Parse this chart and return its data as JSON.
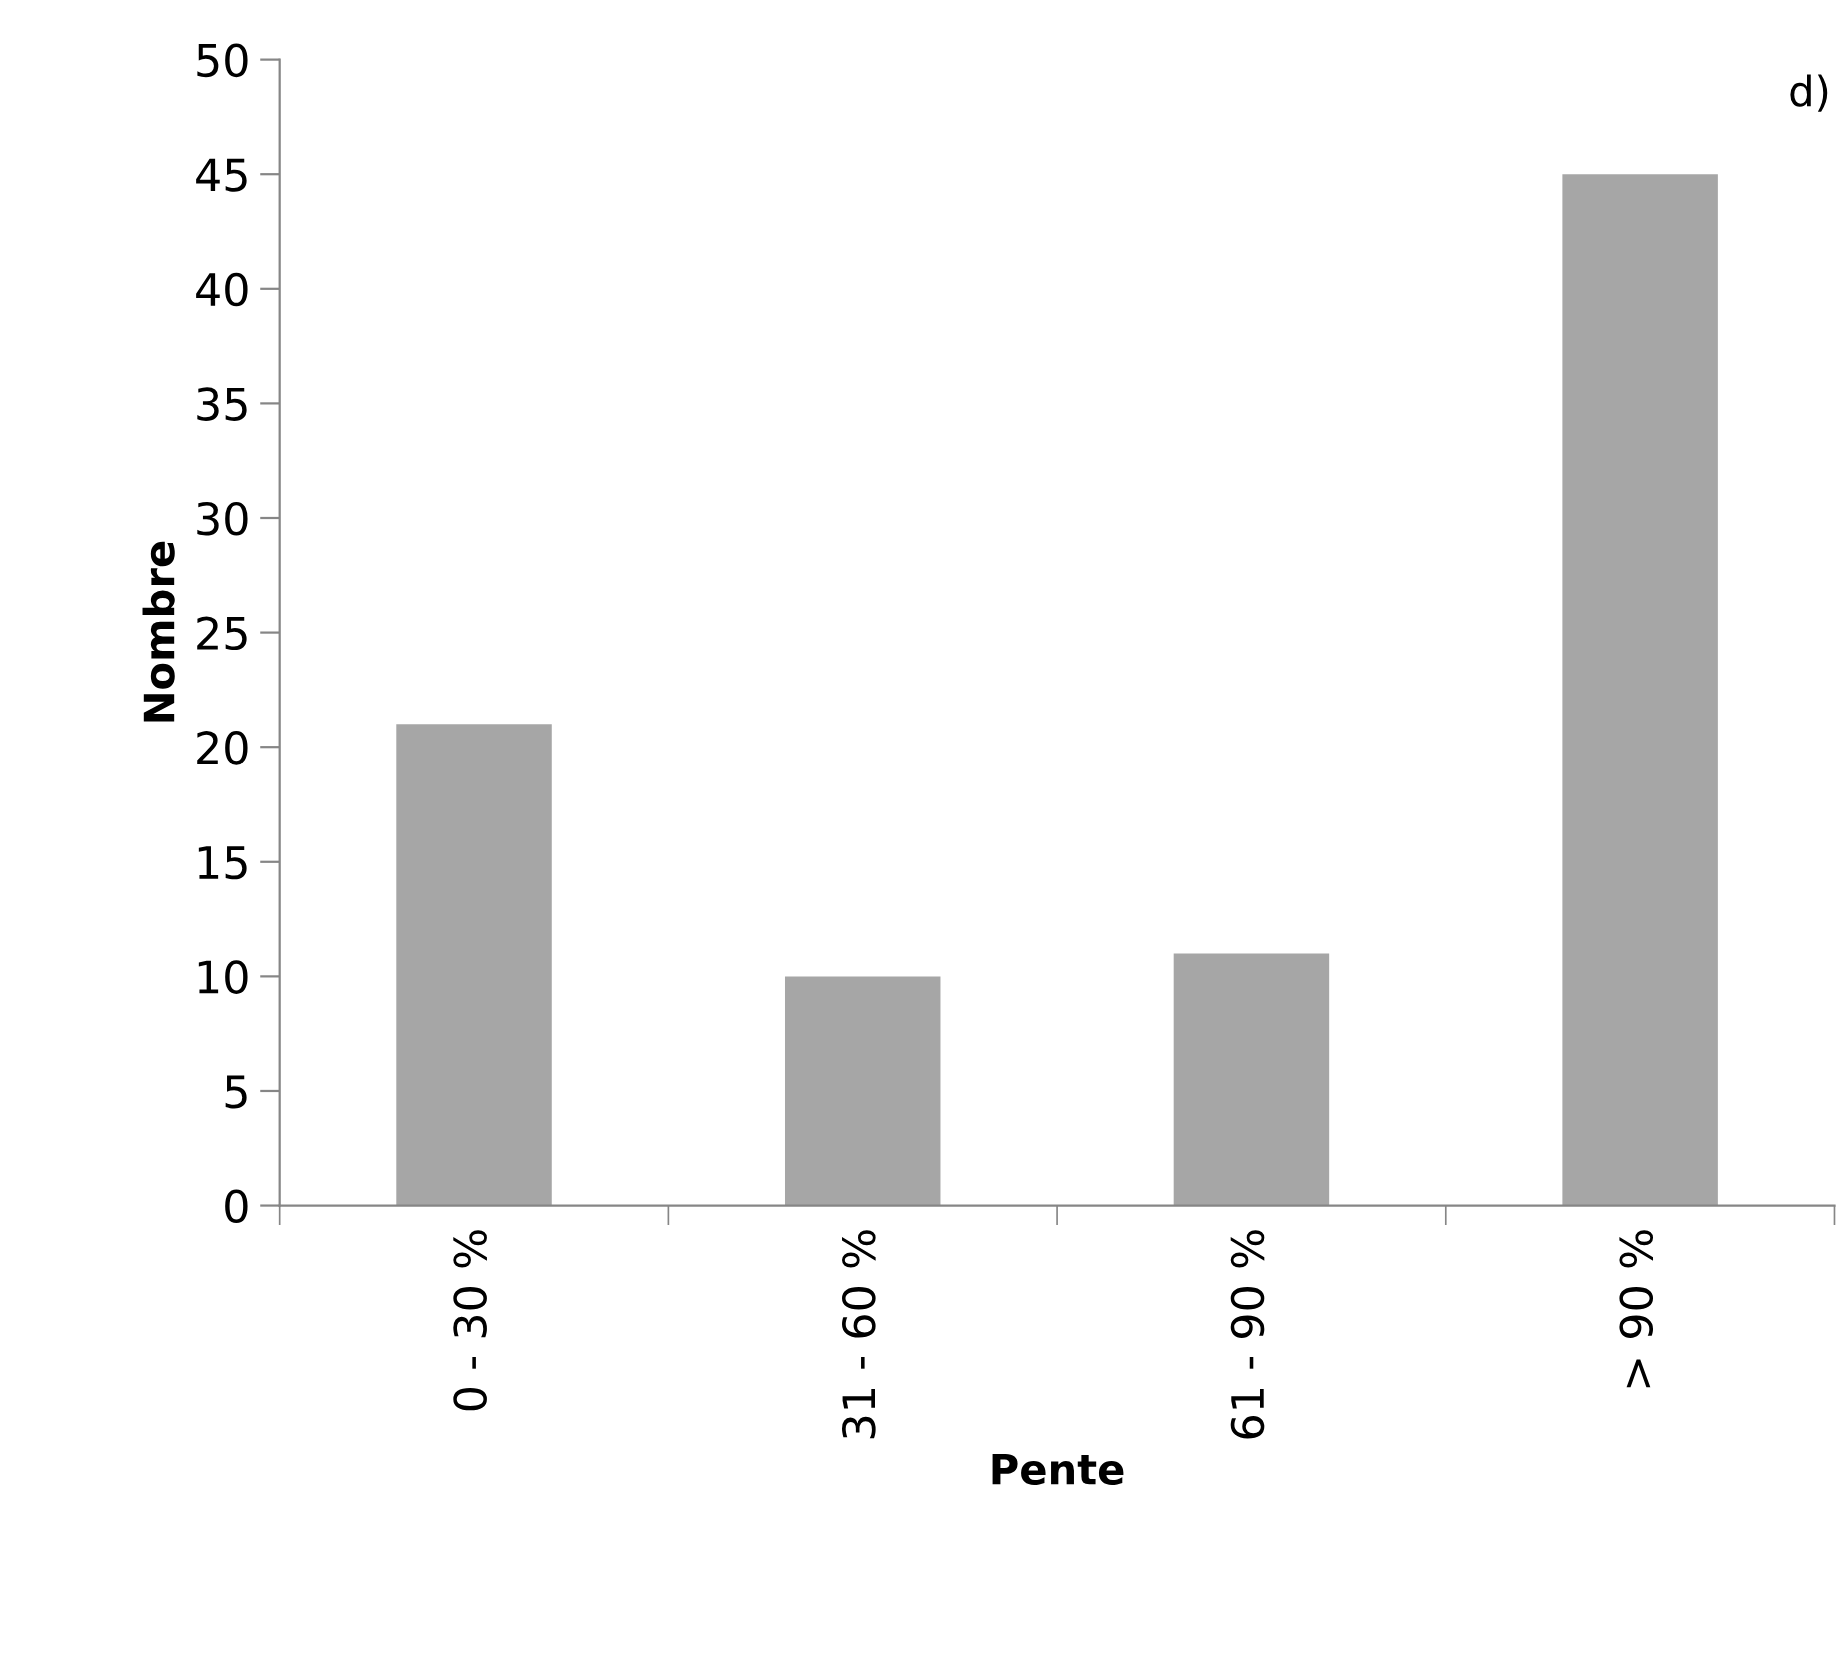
{
  "chart_data": {
    "type": "bar",
    "xlabel": "Pente",
    "ylabel": "Nombre",
    "annotations": [
      "d)"
    ],
    "categories": [
      "0 - 30 %",
      "31 - 60 %",
      "61 - 90 %",
      "> 90 %"
    ],
    "values": [
      21,
      10,
      11,
      45
    ],
    "color": "#a6a6a6",
    "ylim": [
      0,
      50
    ],
    "yticks": [
      0,
      5,
      10,
      15,
      20,
      25,
      30,
      35,
      40,
      45,
      50
    ],
    "grid": false,
    "legend": false
  }
}
